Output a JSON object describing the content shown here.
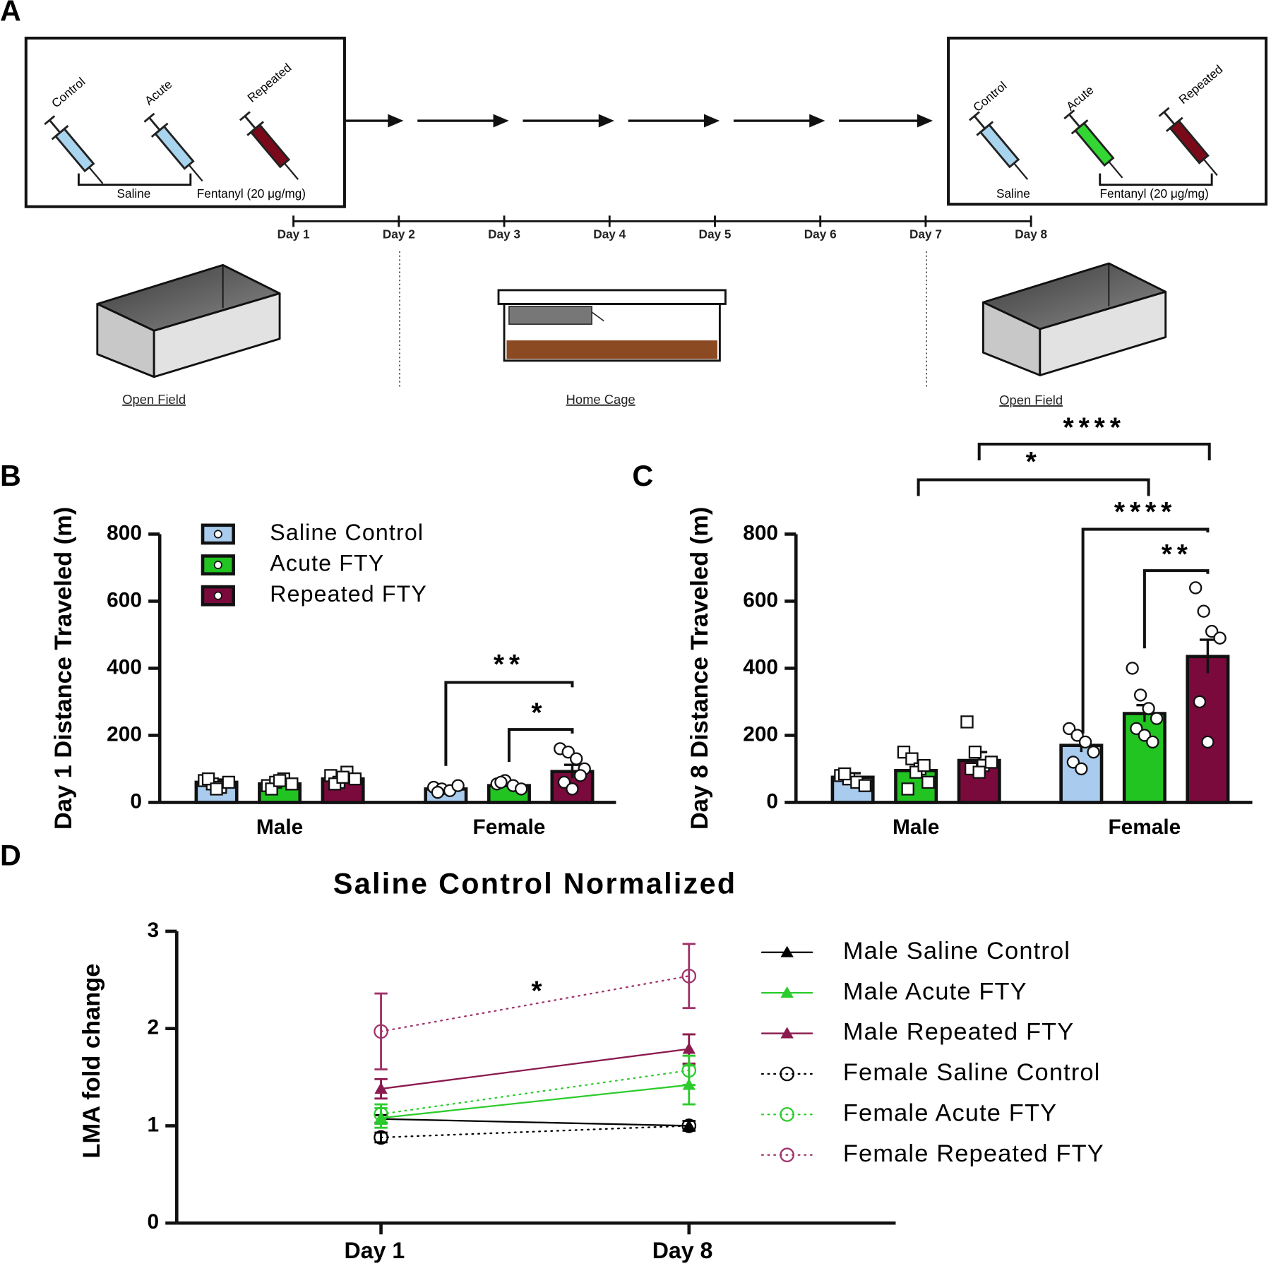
{
  "panels": [
    "A",
    "B",
    "C",
    "D"
  ],
  "diagram": {
    "day1_groups": [
      "Control",
      "Acute",
      "Repeated"
    ],
    "day1_brackets": [
      "Saline",
      "Fentanyl (20 μg/mg)"
    ],
    "timeline": [
      "Day 1",
      "Day 2",
      "Day 3",
      "Day 4",
      "Day 5",
      "Day 6",
      "Day 7",
      "Day 8"
    ],
    "day8_groups": [
      "Control",
      "Acute",
      "Repeated"
    ],
    "day8_brackets": [
      "Saline",
      "Fentanyl (20 μg/mg)"
    ],
    "arenas": [
      "Open Field",
      "Home Cage",
      "Open Field"
    ]
  },
  "chart_data": [
    {
      "type": "bar",
      "ylabel": "Day 1 Distance Traveled (m)",
      "categories": [
        "Male",
        "Female"
      ],
      "ylim": [
        0,
        800
      ],
      "yticks": [
        0,
        200,
        400,
        600,
        800
      ],
      "legend": "top-left",
      "point_marker": [
        "square",
        "circle"
      ],
      "series": [
        {
          "name": "Saline Control",
          "color": "#a9cbee",
          "values": [
            60,
            40
          ],
          "errors": [
            8,
            5
          ],
          "points": [
            [
              65,
              55,
              45,
              60,
              70,
              40
            ],
            [
              45,
              40,
              35,
              50,
              30
            ]
          ]
        },
        {
          "name": "Acute FTY",
          "color": "#22c422",
          "values": [
            55,
            50
          ],
          "errors": [
            8,
            7
          ],
          "points": [
            [
              50,
              60,
              70,
              55,
              40,
              65
            ],
            [
              55,
              65,
              50,
              40,
              60
            ]
          ]
        },
        {
          "name": "Repeated FTY",
          "color": "#7b0a3c",
          "values": [
            70,
            92
          ],
          "errors": [
            9,
            20
          ],
          "points": [
            [
              80,
              60,
              90,
              70,
              55,
              75
            ],
            [
              160,
              150,
              130,
              100,
              60,
              40,
              80
            ]
          ]
        }
      ],
      "annotations": [
        "**",
        "*"
      ]
    },
    {
      "type": "bar",
      "ylabel": "Day 8 Distance Traveled (m)",
      "categories": [
        "Male",
        "Female"
      ],
      "ylim": [
        0,
        800
      ],
      "yticks": [
        0,
        200,
        400,
        600,
        800
      ],
      "point_marker": [
        "square",
        "circle"
      ],
      "series": [
        {
          "name": "Saline Control",
          "color": "#a9cbee",
          "values": [
            75,
            170
          ],
          "errors": [
            12,
            20
          ],
          "points": [
            [
              80,
              70,
              60,
              50,
              85
            ],
            [
              220,
              200,
              180,
              150,
              120,
              100
            ]
          ]
        },
        {
          "name": "Acute FTY",
          "color": "#22c422",
          "values": [
            95,
            265
          ],
          "errors": [
            22,
            25
          ],
          "points": [
            [
              150,
              130,
              100,
              60,
              40,
              90,
              110
            ],
            [
              400,
              320,
              280,
              250,
              220,
              200,
              180
            ]
          ]
        },
        {
          "name": "Repeated FTY",
          "color": "#7b0a3c",
          "values": [
            125,
            435
          ],
          "errors": [
            25,
            50
          ],
          "points": [
            [
              240,
              150,
              110,
              120,
              100,
              90
            ],
            [
              640,
              570,
              510,
              490,
              300,
              180
            ]
          ]
        }
      ],
      "annotations": [
        "*",
        "****",
        "****",
        "**"
      ]
    },
    {
      "type": "line",
      "title": "Saline Control Normalized",
      "ylabel": "LMA fold change",
      "categories": [
        "Day 1",
        "Day 8"
      ],
      "ylim": [
        0,
        3
      ],
      "yticks": [
        0,
        1,
        2,
        3
      ],
      "legend": "right",
      "series": [
        {
          "name": "Male Saline Control",
          "color": "#000000",
          "line_style": "solid",
          "marker": "triangle",
          "values": [
            1.07,
            1.0
          ],
          "errors": [
            0.04,
            0.05
          ]
        },
        {
          "name": "Male Acute FTY",
          "color": "#2ccc2c",
          "line_style": "solid",
          "marker": "triangle",
          "values": [
            1.08,
            1.42
          ],
          "errors": [
            0.1,
            0.2
          ]
        },
        {
          "name": "Male Repeated FTY",
          "color": "#8b1a4e",
          "line_style": "solid",
          "marker": "triangle",
          "values": [
            1.38,
            1.79
          ],
          "errors": [
            0.1,
            0.15
          ]
        },
        {
          "name": "Female Saline Control",
          "color": "#000000",
          "line_style": "dotted",
          "marker": "circle",
          "values": [
            0.88,
            1.0
          ],
          "errors": [
            0.05,
            0.05
          ]
        },
        {
          "name": "Female Acute FTY",
          "color": "#2ccc2c",
          "line_style": "dotted",
          "marker": "circle",
          "values": [
            1.12,
            1.57
          ],
          "errors": [
            0.1,
            0.15
          ]
        },
        {
          "name": "Female Repeated FTY",
          "color": "#a0336a",
          "line_style": "dotted",
          "marker": "circle",
          "values": [
            1.97,
            2.54
          ],
          "errors": [
            0.39,
            0.33
          ]
        }
      ],
      "annotations": [
        "*"
      ]
    }
  ]
}
